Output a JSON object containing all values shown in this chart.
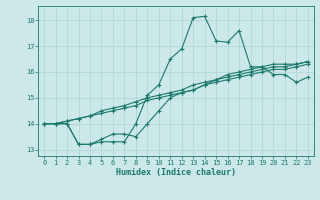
{
  "bg_color": "#cce8e8",
  "grid_color": "#b0d8d8",
  "line_color": "#1a7a6e",
  "xlabel": "Humidex (Indice chaleur)",
  "xlim": [
    -0.5,
    23.5
  ],
  "ylim": [
    12.75,
    18.55
  ],
  "yticks": [
    13,
    14,
    15,
    16,
    17,
    18
  ],
  "xticks": [
    0,
    1,
    2,
    3,
    4,
    5,
    6,
    7,
    8,
    9,
    10,
    11,
    12,
    13,
    14,
    15,
    16,
    17,
    18,
    19,
    20,
    21,
    22,
    23
  ],
  "series": [
    {
      "x": [
        0,
        1,
        2,
        3,
        4,
        5,
        6,
        7,
        8,
        9,
        10,
        11,
        12,
        13,
        14,
        15,
        16,
        17,
        18,
        19,
        20,
        21,
        22,
        23
      ],
      "y": [
        14.0,
        14.0,
        14.0,
        13.2,
        13.2,
        13.3,
        13.3,
        13.3,
        14.0,
        15.1,
        15.5,
        16.5,
        16.9,
        18.1,
        18.15,
        17.2,
        17.15,
        17.6,
        16.2,
        16.2,
        15.9,
        15.9,
        15.6,
        15.8
      ]
    },
    {
      "x": [
        0,
        1,
        2,
        3,
        4,
        5,
        6,
        7,
        8,
        9,
        10,
        11,
        12,
        13,
        14,
        15,
        16,
        17,
        18,
        19,
        20,
        21,
        22,
        23
      ],
      "y": [
        14.0,
        14.0,
        14.0,
        13.2,
        13.2,
        13.4,
        13.6,
        13.6,
        13.5,
        14.0,
        14.5,
        15.0,
        15.2,
        15.3,
        15.5,
        15.7,
        15.9,
        16.0,
        16.1,
        16.2,
        16.3,
        16.3,
        16.3,
        16.4
      ]
    },
    {
      "x": [
        0,
        1,
        2,
        3,
        4,
        5,
        6,
        7,
        8,
        9,
        10,
        11,
        12,
        13,
        14,
        15,
        16,
        17,
        18,
        19,
        20,
        21,
        22,
        23
      ],
      "y": [
        14.0,
        14.0,
        14.1,
        14.2,
        14.3,
        14.4,
        14.5,
        14.6,
        14.7,
        14.9,
        15.0,
        15.1,
        15.2,
        15.3,
        15.5,
        15.6,
        15.7,
        15.8,
        15.9,
        16.0,
        16.1,
        16.1,
        16.2,
        16.3
      ]
    },
    {
      "x": [
        0,
        1,
        2,
        3,
        4,
        5,
        6,
        7,
        8,
        9,
        10,
        11,
        12,
        13,
        14,
        15,
        16,
        17,
        18,
        19,
        20,
        21,
        22,
        23
      ],
      "y": [
        14.0,
        14.0,
        14.1,
        14.2,
        14.3,
        14.5,
        14.6,
        14.7,
        14.85,
        15.0,
        15.1,
        15.2,
        15.3,
        15.5,
        15.6,
        15.7,
        15.8,
        15.9,
        16.0,
        16.1,
        16.2,
        16.2,
        16.3,
        16.4
      ]
    }
  ]
}
